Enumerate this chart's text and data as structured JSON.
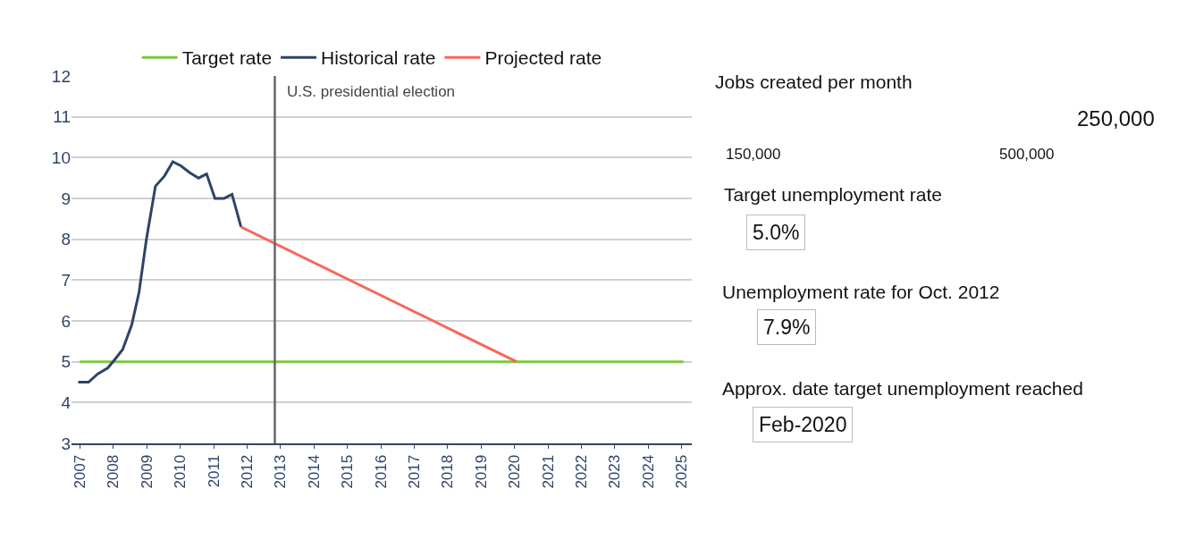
{
  "chart_data": {
    "type": "line",
    "xlim": [
      2006.75,
      2025.3
    ],
    "ylim": [
      3,
      12
    ],
    "xticks": [
      2007,
      2008,
      2009,
      2010,
      2011,
      2012,
      2013,
      2014,
      2015,
      2016,
      2017,
      2018,
      2019,
      2020,
      2021,
      2022,
      2023,
      2024,
      2025
    ],
    "yticks": [
      3,
      4,
      5,
      6,
      7,
      8,
      9,
      10,
      11,
      12
    ],
    "grid": "y",
    "legend": "top left",
    "marker": "none",
    "line_style": "solid",
    "series": [
      {
        "name": "Target rate",
        "color": "#7dc940",
        "x": [
          2007,
          2025.05
        ],
        "values": [
          5,
          5
        ]
      },
      {
        "name": "Historical rate",
        "color": "#2e4468",
        "x": [
          2006.95,
          2007.26,
          2007.53,
          2007.84,
          2008.06,
          2008.28,
          2008.55,
          2008.77,
          2008.99,
          2009.26,
          2009.53,
          2009.78,
          2010.02,
          2010.29,
          2010.55,
          2010.79,
          2011.04,
          2011.31,
          2011.55,
          2011.82
        ],
        "values": [
          4.5,
          4.5,
          4.7,
          4.85,
          5.07,
          5.3,
          5.9,
          6.7,
          8.0,
          9.3,
          9.55,
          9.9,
          9.8,
          9.63,
          9.5,
          9.6,
          9.0,
          9.0,
          9.1,
          8.3
        ]
      },
      {
        "name": "Projected rate",
        "color": "#f8675a",
        "x": [
          2011.82,
          2020.06
        ],
        "values": [
          8.3,
          5.0
        ]
      }
    ],
    "ref_lines": [
      {
        "axis": "x",
        "value": 2012.83,
        "label": "U.S. presidential election",
        "color": "#666666"
      }
    ],
    "annotations": [
      "Jobs created per month",
      "250,000",
      "150,000",
      "500,000",
      "Target unemployment rate",
      "5.0%",
      "Unemployment rate for Oct. 2012",
      "7.9%",
      "Approx. date target unemployment reached",
      "Feb-2020"
    ]
  }
}
